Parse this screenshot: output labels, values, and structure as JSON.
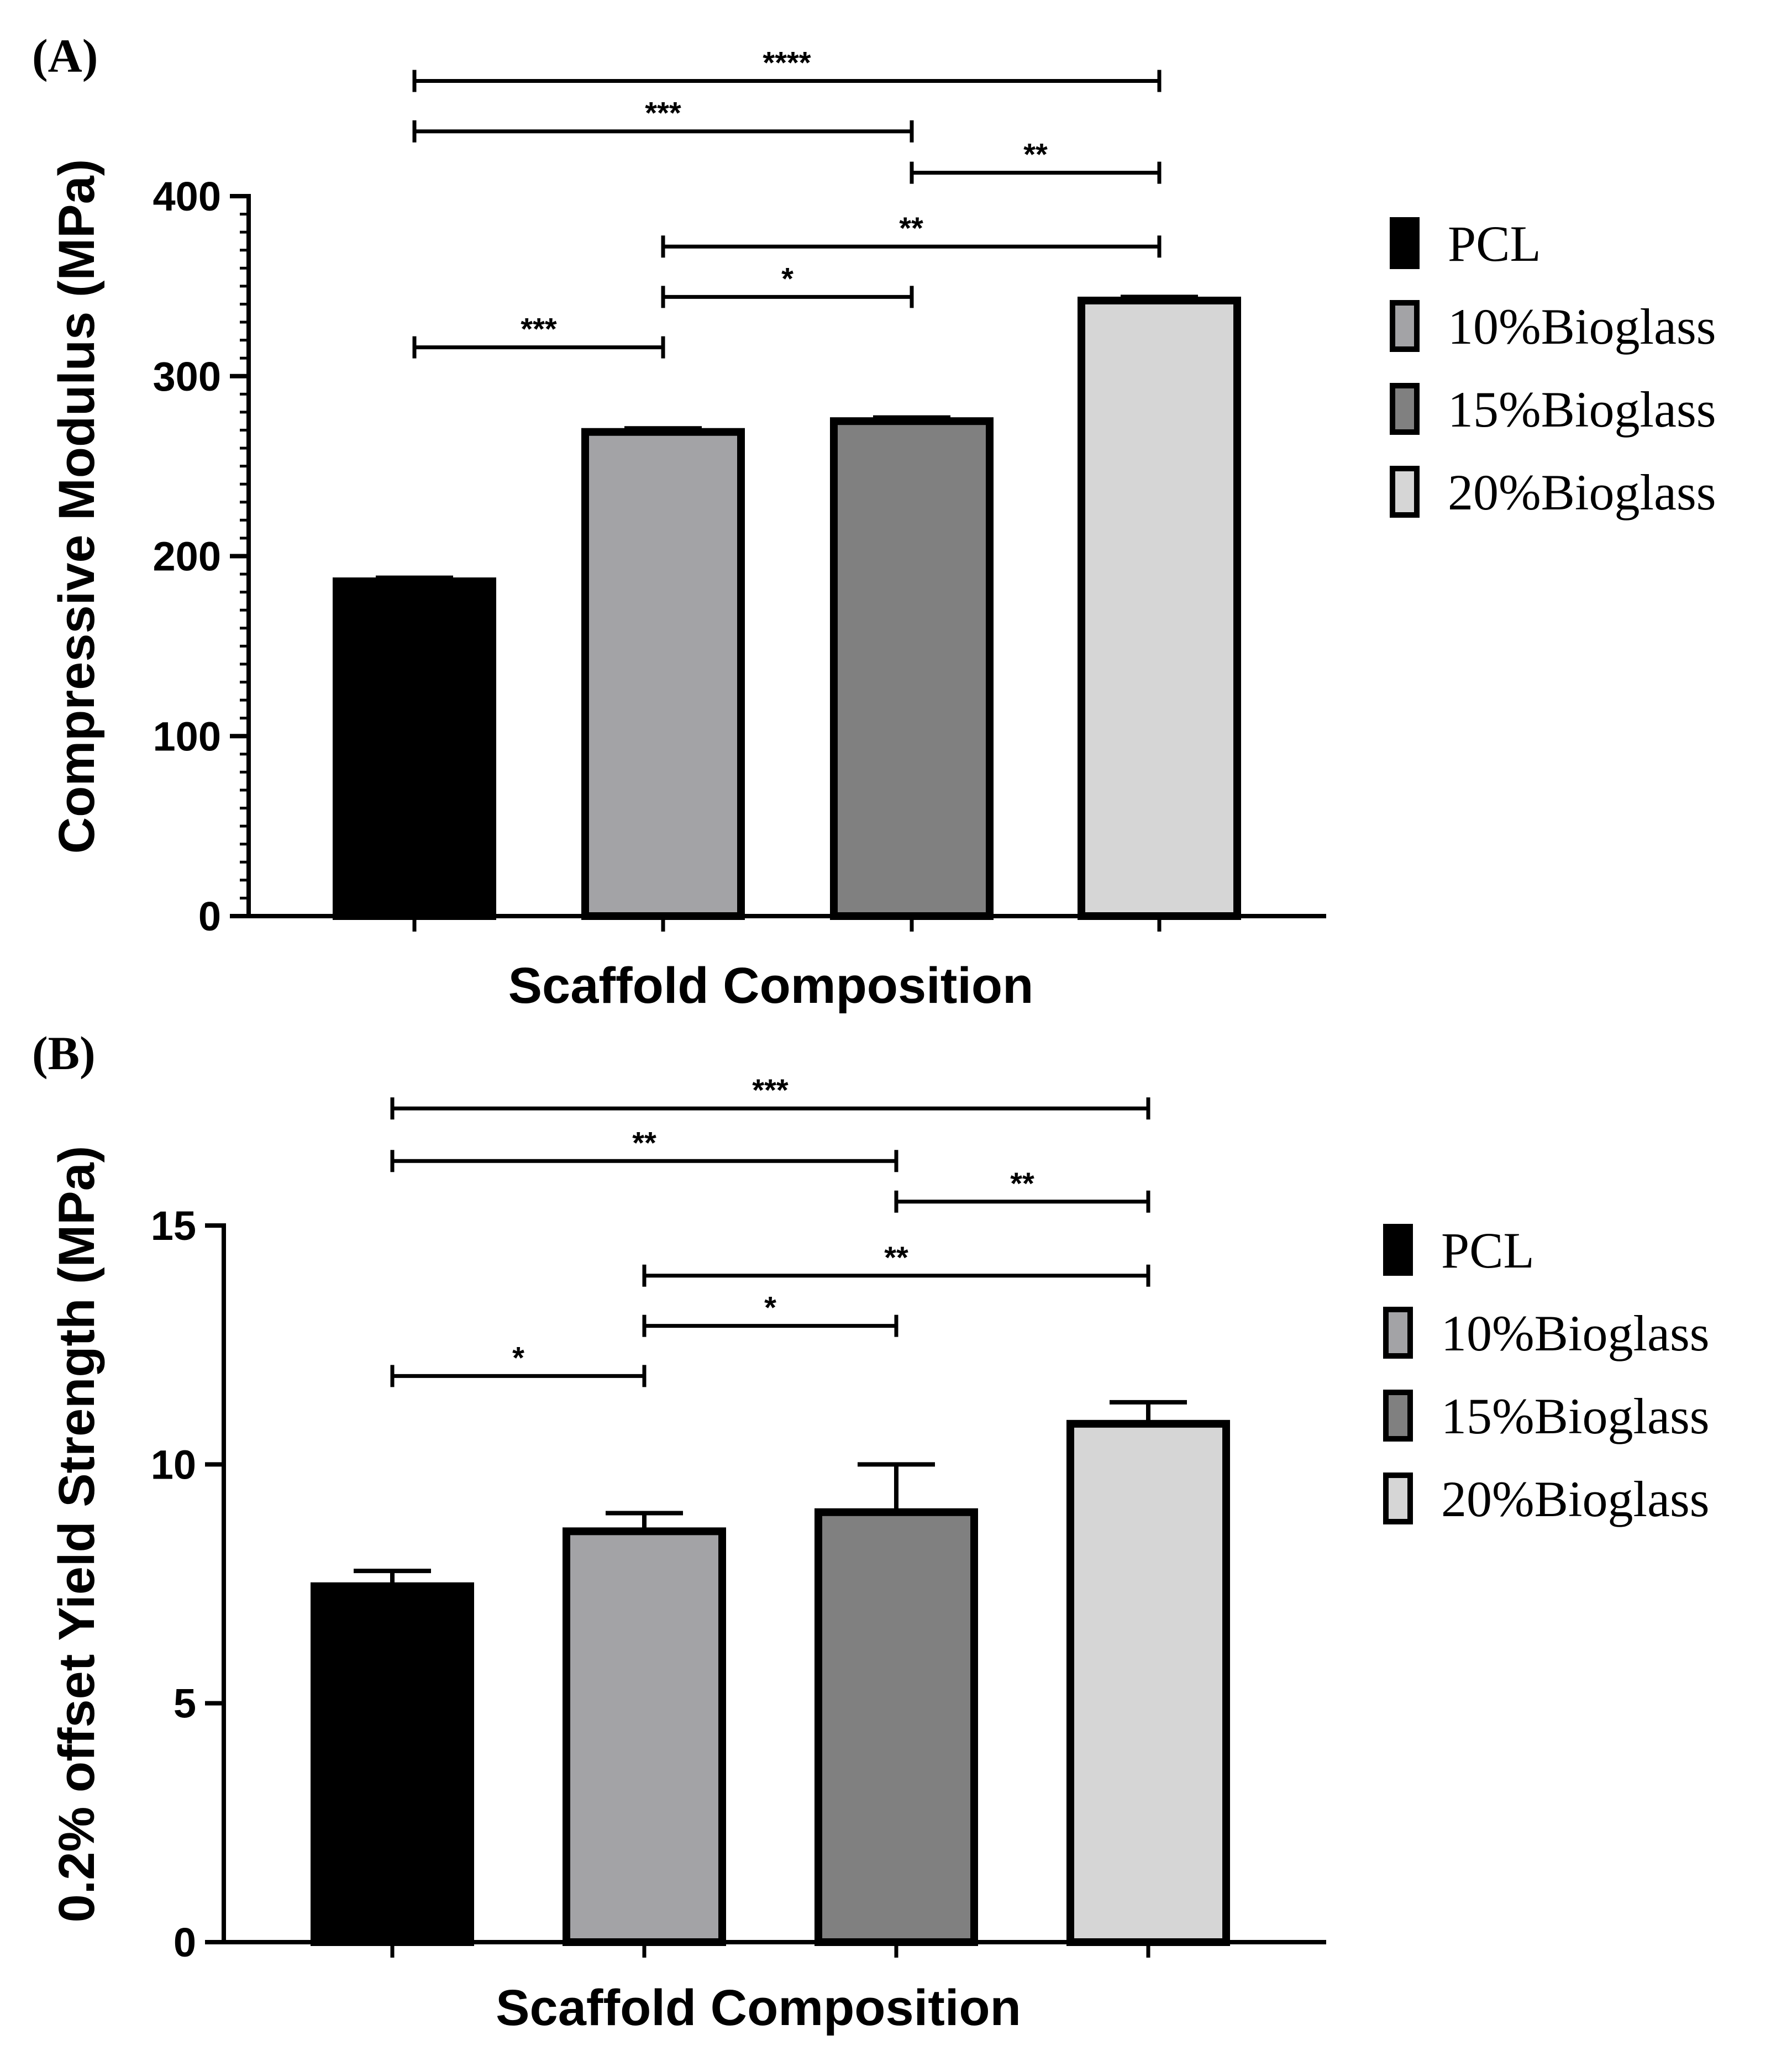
{
  "colors": {
    "PCL": "#000000",
    "10%Bioglass": "#a3a3a6",
    "15%Bioglass": "#808080",
    "20%Bioglass": "#d6d6d6",
    "axis": "#000000"
  },
  "chart_data": [
    {
      "type": "bar",
      "panel_label": "(A)",
      "xlabel": "Scaffold Composition",
      "ylabel": "Compressive Modulus (MPa)",
      "ylim": [
        0,
        400
      ],
      "yticks": [
        0,
        100,
        200,
        300,
        400
      ],
      "minor_ticks_per_major": 10,
      "legend_position": "right",
      "categories": [
        "PCL",
        "10%Bioglass",
        "15%Bioglass",
        "20%Bioglass"
      ],
      "values": [
        186,
        269,
        275,
        342
      ],
      "errors": [
        2,
        2,
        2,
        2
      ],
      "significance": [
        {
          "from": 0,
          "to": 1,
          "label": "***",
          "y": 316
        },
        {
          "from": 1,
          "to": 2,
          "label": "*",
          "y": 344
        },
        {
          "from": 1,
          "to": 3,
          "label": "**",
          "y": 372
        },
        {
          "from": 2,
          "to": 3,
          "label": "**",
          "y": 413
        },
        {
          "from": 0,
          "to": 2,
          "label": "***",
          "y": 436
        },
        {
          "from": 0,
          "to": 3,
          "label": "****",
          "y": 464
        }
      ]
    },
    {
      "type": "bar",
      "panel_label": "(B)",
      "xlabel": "Scaffold Composition",
      "ylabel": "0.2% offset Yield Strength (MPa)",
      "ylim": [
        0,
        15
      ],
      "yticks": [
        0,
        5,
        10,
        15
      ],
      "minor_ticks_per_major": 0,
      "legend_position": "right",
      "categories": [
        "PCL",
        "10%Bioglass",
        "15%Bioglass",
        "20%Bioglass"
      ],
      "values": [
        7.45,
        8.6,
        9.0,
        10.85
      ],
      "errors": [
        0.32,
        0.38,
        1.0,
        0.45
      ],
      "significance": [
        {
          "from": 0,
          "to": 1,
          "label": "*",
          "y": 11.85
        },
        {
          "from": 1,
          "to": 2,
          "label": "*",
          "y": 12.9
        },
        {
          "from": 1,
          "to": 3,
          "label": "**",
          "y": 13.95
        },
        {
          "from": 2,
          "to": 3,
          "label": "**",
          "y": 15.5
        },
        {
          "from": 0,
          "to": 2,
          "label": "**",
          "y": 16.35
        },
        {
          "from": 0,
          "to": 3,
          "label": "***",
          "y": 17.45
        }
      ]
    }
  ]
}
